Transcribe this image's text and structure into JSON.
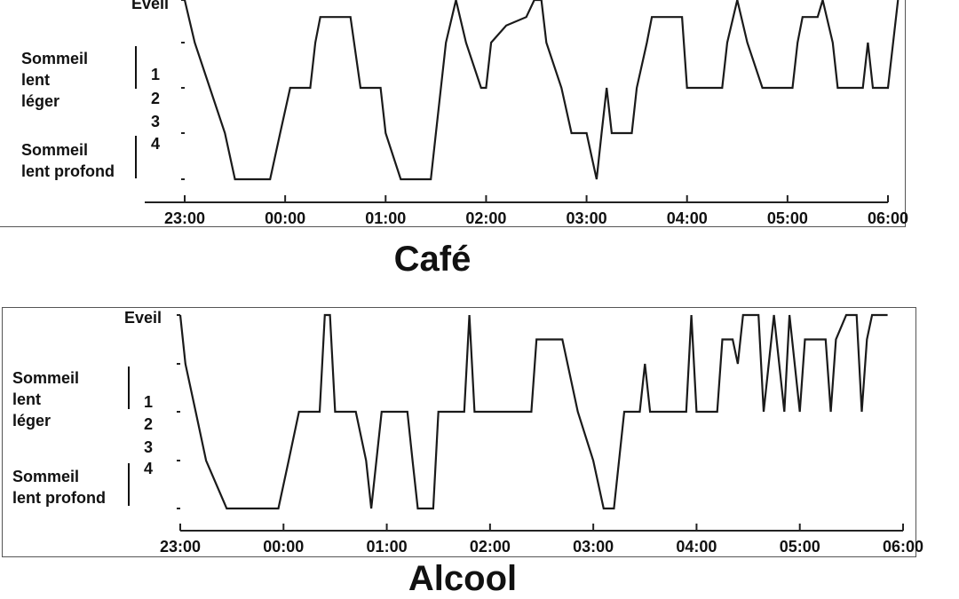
{
  "chart_data": [
    {
      "type": "line",
      "title": "Café",
      "y_levels": [
        "Eveil",
        "1",
        "2",
        "3",
        "4"
      ],
      "y_group_labels": [
        {
          "text": "Sommeil\nlent\nléger",
          "levels": [
            "1",
            "2"
          ]
        },
        {
          "text": "Sommeil\nlent profond",
          "levels": [
            "3",
            "4"
          ]
        }
      ],
      "x_tick_labels": [
        "23:00",
        "00:00",
        "01:00",
        "02:00",
        "03:00",
        "04:00",
        "05:00",
        "06:00"
      ],
      "x_range_hours": [
        23,
        30
      ],
      "y_scale": "0 = Eveil, 4 = stade 4",
      "series": [
        {
          "points": [
            [
              23.0,
              0
            ],
            [
              23.1,
              1
            ],
            [
              23.25,
              2
            ],
            [
              23.4,
              3
            ],
            [
              23.5,
              4
            ],
            [
              23.85,
              4
            ],
            [
              23.95,
              3
            ],
            [
              24.05,
              2
            ],
            [
              24.25,
              2
            ],
            [
              24.3,
              1
            ],
            [
              24.35,
              0.4
            ],
            [
              24.65,
              0.4
            ],
            [
              24.75,
              2
            ],
            [
              24.95,
              2
            ],
            [
              25.0,
              3
            ],
            [
              25.15,
              4
            ],
            [
              25.45,
              4
            ],
            [
              25.5,
              3
            ],
            [
              25.6,
              1
            ],
            [
              25.7,
              0
            ],
            [
              25.8,
              1
            ],
            [
              25.95,
              2
            ],
            [
              26.0,
              2
            ],
            [
              26.05,
              1
            ],
            [
              26.2,
              0.6
            ],
            [
              26.4,
              0.4
            ],
            [
              26.48,
              0
            ],
            [
              26.55,
              0
            ],
            [
              26.6,
              1
            ],
            [
              26.75,
              2
            ],
            [
              26.85,
              3
            ],
            [
              27.0,
              3
            ],
            [
              27.05,
              3.5
            ],
            [
              27.1,
              4
            ],
            [
              27.15,
              3
            ],
            [
              27.2,
              2
            ],
            [
              27.25,
              3
            ],
            [
              27.45,
              3
            ],
            [
              27.5,
              2
            ],
            [
              27.6,
              1
            ],
            [
              27.65,
              0.4
            ],
            [
              27.95,
              0.4
            ],
            [
              28.0,
              2
            ],
            [
              28.35,
              2
            ],
            [
              28.4,
              1
            ],
            [
              28.5,
              0
            ],
            [
              28.6,
              1
            ],
            [
              28.75,
              2
            ],
            [
              29.05,
              2
            ],
            [
              29.1,
              1
            ],
            [
              29.15,
              0.4
            ],
            [
              29.3,
              0.4
            ],
            [
              29.35,
              0
            ],
            [
              29.45,
              1
            ],
            [
              29.5,
              2
            ],
            [
              29.75,
              2
            ],
            [
              29.8,
              1
            ],
            [
              29.85,
              2
            ],
            [
              30.0,
              2
            ],
            [
              30.1,
              0
            ]
          ]
        }
      ]
    },
    {
      "type": "line",
      "title": "Alcool",
      "y_levels": [
        "Eveil",
        "1",
        "2",
        "3",
        "4"
      ],
      "y_group_labels": [
        {
          "text": "Sommeil\nlent\nléger",
          "levels": [
            "1",
            "2"
          ]
        },
        {
          "text": "Sommeil\nlent profond",
          "levels": [
            "3",
            "4"
          ]
        }
      ],
      "x_tick_labels": [
        "23:00",
        "00:00",
        "01:00",
        "02:00",
        "03:00",
        "04:00",
        "05:00",
        "06:00"
      ],
      "x_range_hours": [
        23,
        30
      ],
      "y_scale": "0 = Eveil, 4 = stade 4",
      "series": [
        {
          "points": [
            [
              23.0,
              0
            ],
            [
              23.05,
              1
            ],
            [
              23.15,
              2
            ],
            [
              23.25,
              3
            ],
            [
              23.45,
              4
            ],
            [
              23.95,
              4
            ],
            [
              24.05,
              3
            ],
            [
              24.15,
              2
            ],
            [
              24.35,
              2
            ],
            [
              24.4,
              0
            ],
            [
              24.45,
              0
            ],
            [
              24.5,
              2
            ],
            [
              24.7,
              2
            ],
            [
              24.8,
              3
            ],
            [
              24.85,
              4
            ],
            [
              24.95,
              2
            ],
            [
              24.95,
              2
            ],
            [
              25.2,
              2
            ],
            [
              25.25,
              3
            ],
            [
              25.3,
              4
            ],
            [
              25.45,
              4
            ],
            [
              25.5,
              2
            ],
            [
              25.75,
              2
            ],
            [
              25.8,
              0
            ],
            [
              25.85,
              2
            ],
            [
              26.4,
              2
            ],
            [
              26.45,
              0.5
            ],
            [
              26.7,
              0.5
            ],
            [
              26.85,
              2
            ],
            [
              27.0,
              3
            ],
            [
              27.1,
              4
            ],
            [
              27.2,
              4
            ],
            [
              27.3,
              2
            ],
            [
              27.45,
              2
            ],
            [
              27.5,
              1
            ],
            [
              27.55,
              2
            ],
            [
              27.9,
              2
            ],
            [
              27.95,
              0
            ],
            [
              28.0,
              2
            ],
            [
              28.2,
              2
            ],
            [
              28.25,
              0.5
            ],
            [
              28.35,
              0.5
            ],
            [
              28.4,
              1
            ],
            [
              28.45,
              0
            ],
            [
              28.6,
              0
            ],
            [
              28.65,
              2
            ],
            [
              28.75,
              0
            ],
            [
              28.85,
              2
            ],
            [
              28.9,
              0
            ],
            [
              29.0,
              2
            ],
            [
              29.05,
              0.5
            ],
            [
              29.25,
              0.5
            ],
            [
              29.3,
              2
            ],
            [
              29.35,
              0.5
            ],
            [
              29.45,
              0
            ],
            [
              29.55,
              0
            ],
            [
              29.6,
              2
            ],
            [
              29.65,
              0.5
            ],
            [
              29.7,
              0
            ],
            [
              29.85,
              0
            ]
          ]
        }
      ]
    }
  ],
  "labels": {
    "eveil": "Eveil",
    "group_light": [
      "Sommeil",
      "lent",
      "léger"
    ],
    "group_deep": [
      "Sommeil",
      "lent profond"
    ],
    "stages": [
      "1",
      "2",
      "3",
      "4"
    ]
  },
  "colors": {
    "line": "#1a1a1a",
    "axis": "#222222",
    "frame": "#555555"
  }
}
